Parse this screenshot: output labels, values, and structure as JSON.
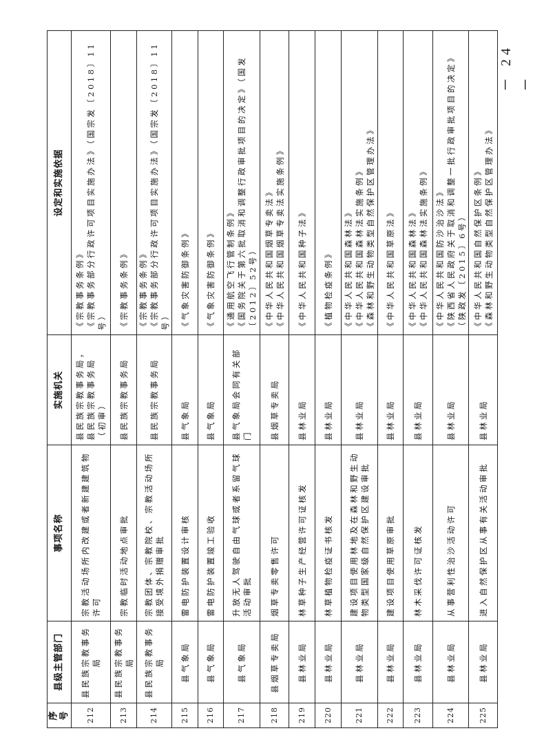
{
  "table": {
    "headers": [
      "序号",
      "县级主管部门",
      "事项名称",
      "实施机关",
      "设定和实施依据"
    ],
    "rows": [
      {
        "no": "212",
        "dept": "县民族宗教事务局",
        "item": "宗教活动场所内改建或者新建建筑物许可",
        "agency": "县民族宗教事务局，县民族宗教事务局（初审）",
        "basis": [
          "《宗教事务条例》",
          "《宗教事务部分行政许可项目实施办法》（国宗发〔2018〕11号）"
        ]
      },
      {
        "no": "213",
        "dept": "县民族宗教事务局",
        "item": "宗教临时活动地点审批",
        "agency": "县民族宗教事务局",
        "basis": [
          "《宗教事务条例》"
        ]
      },
      {
        "no": "214",
        "dept": "县民族宗教事务局",
        "item": "宗教团体、宗教院校、宗教活动场所接受境外捐赠审批",
        "agency": "县民族宗教事务局",
        "basis": [
          "《宗教事务条例》",
          "《宗教事务部分行政许可项目实施办法》（国宗发〔2018〕11号）"
        ]
      },
      {
        "no": "215",
        "dept": "县气象局",
        "item": "雷电防护装置设计审核",
        "agency": "县气象局",
        "basis": [
          "《气象灾害防御条例》"
        ]
      },
      {
        "no": "216",
        "dept": "县气象局",
        "item": "雷电防护装置竣工验收",
        "agency": "县气象局",
        "basis": [
          "《气象灾害防御条例》"
        ]
      },
      {
        "no": "217",
        "dept": "县气象局",
        "item": "升放无人驾驶自由气球或者系留气球活动审批",
        "agency": "县气象局会同有关部门",
        "basis": [
          "《通用航空飞行管制条例》",
          "《国务院关于第六批取消和调整行政审批项目的决定》（国发〔2012〕52号）"
        ]
      },
      {
        "no": "218",
        "dept": "县烟草专卖局",
        "item": "烟草专卖零售许可",
        "agency": "县烟草专卖局",
        "basis": [
          "《中华人民共和国烟草专卖法》",
          "《中华人民共和国烟草专卖法实施条例》"
        ]
      },
      {
        "no": "219",
        "dept": "县林业局",
        "item": "林草种子生产经营许可证核发",
        "agency": "县林业局",
        "basis": [
          "《中华人民共和国种子法》"
        ]
      },
      {
        "no": "220",
        "dept": "县林业局",
        "item": "林草植物检疫证书核发",
        "agency": "县林业局",
        "basis": [
          "《植物检疫条例》"
        ]
      },
      {
        "no": "221",
        "dept": "县林业局",
        "item": "建设项目使用林地及在森林和野生动物类型国家级自然保护区建设审批",
        "agency": "县林业局",
        "basis": [
          "《中华人民共和国森林法》",
          "《中华人民共和国森林法实施条例》",
          "《森林和野生动物类型自然保护区管理办法》"
        ]
      },
      {
        "no": "222",
        "dept": "县林业局",
        "item": "建设项目使用草原审批",
        "agency": "县林业局",
        "basis": [
          "《中华人民共和国草原法》"
        ]
      },
      {
        "no": "223",
        "dept": "县林业局",
        "item": "林木采伐许可证核发",
        "agency": "县林业局",
        "basis": [
          "《中华人民共和国森林法》",
          "《中华人民共和国森林法实施条例》"
        ]
      },
      {
        "no": "224",
        "dept": "县林业局",
        "item": "从事营利性治沙活动许可",
        "agency": "县林业局",
        "basis": [
          "《中华人民共和国防沙治沙法》",
          "《陕西省人民政府关于取消和调整一批行政审批项目的决定》（陕政发〔2015〕6号）"
        ]
      },
      {
        "no": "225",
        "dept": "县林业局",
        "item": "进入自然保护区从事有关活动审批",
        "agency": "县林业局",
        "basis": [
          "《中华人民共和国自然保护区条例》",
          "《森林和野生动物类型自然保护区管理办法》"
        ]
      }
    ]
  },
  "footer": {
    "page_number": "－ 24 －"
  }
}
